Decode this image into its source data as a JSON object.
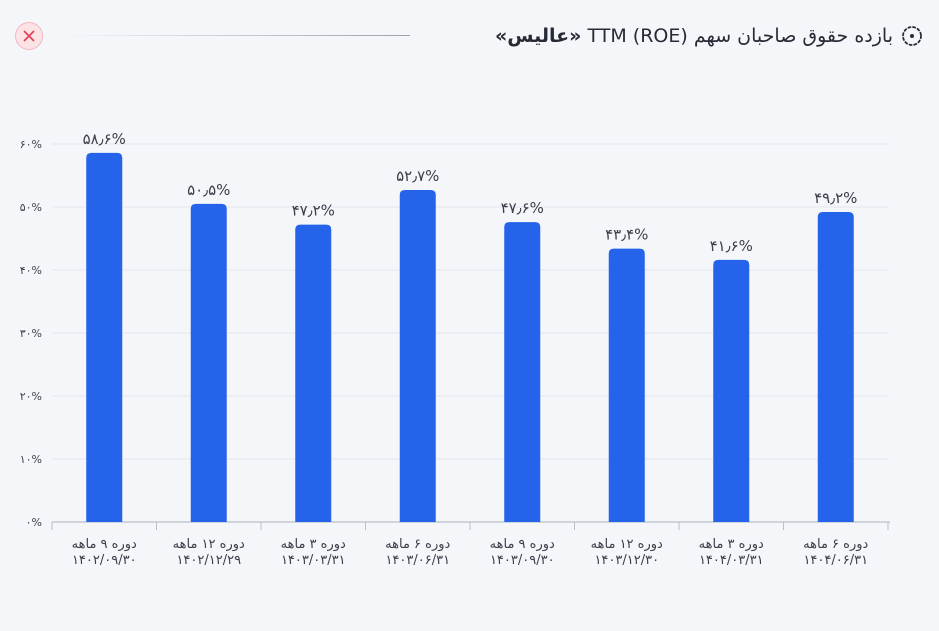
{
  "header": {
    "title_prefix": "بازده حقوق صاحبان سهم TTM (ROE)",
    "title_company": "«عالیس»",
    "title_icon": "dotted-circle-icon",
    "close_icon": "close-icon"
  },
  "colors": {
    "bar": "#2563eb",
    "grid": "#e3e6ec",
    "axis": "#b9bec8",
    "close_bg": "#fde3e6",
    "close_x": "#e0435a"
  },
  "chart_data": {
    "type": "bar",
    "categories": [
      [
        "دوره ۹ ماهه",
        "۱۴۰۲/۰۹/۳۰"
      ],
      [
        "دوره ۱۲ ماهه",
        "۱۴۰۲/۱۲/۲۹"
      ],
      [
        "دوره ۳ ماهه",
        "۱۴۰۳/۰۳/۳۱"
      ],
      [
        "دوره ۶ ماهه",
        "۱۴۰۳/۰۶/۳۱"
      ],
      [
        "دوره ۹ ماهه",
        "۱۴۰۳/۰۹/۳۰"
      ],
      [
        "دوره ۱۲ ماهه",
        "۱۴۰۳/۱۲/۳۰"
      ],
      [
        "دوره ۳ ماهه",
        "۱۴۰۴/۰۳/۳۱"
      ],
      [
        "دوره ۶ ماهه",
        "۱۴۰۴/۰۶/۳۱"
      ]
    ],
    "values": [
      58.6,
      50.5,
      47.2,
      52.7,
      47.6,
      43.4,
      41.6,
      49.2
    ],
    "value_labels": [
      "۵۸٫۶%",
      "۵۰٫۵%",
      "۴۷٫۲%",
      "۵۲٫۷%",
      "۴۷٫۶%",
      "۴۳٫۴%",
      "۴۱٫۶%",
      "۴۹٫۲%"
    ],
    "yticks": [
      0,
      10,
      20,
      30,
      40,
      50,
      60
    ],
    "ytick_labels": [
      "۰%",
      "۱۰%",
      "۲۰%",
      "۳۰%",
      "۴۰%",
      "۵۰%",
      "۶۰%"
    ],
    "ylim": [
      0,
      60
    ],
    "grid": true,
    "legend": "none"
  }
}
